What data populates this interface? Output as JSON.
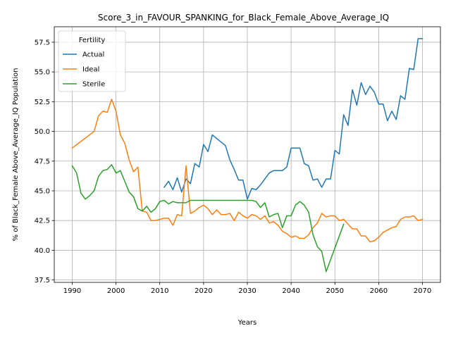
{
  "chart_data": {
    "type": "line",
    "title": "Score_3_in_FAVOUR_SPANKING_for_Black_Female_Above_Average_IQ",
    "xlabel": "Years",
    "ylabel": "% of Black_Female Above_Average_IQ Population",
    "xlim": [
      1985.9,
      2074.1
    ],
    "ylim": [
      37.3,
      58.8
    ],
    "xticks": [
      1990,
      2000,
      2010,
      2020,
      2030,
      2040,
      2050,
      2060,
      2070
    ],
    "yticks": [
      37.5,
      40.0,
      42.5,
      45.0,
      47.5,
      50.0,
      52.5,
      55.0,
      57.5
    ],
    "ytick_labels": [
      "37.5",
      "40.0",
      "42.5",
      "45.0",
      "47.5",
      "50.0",
      "52.5",
      "55.0",
      "57.5"
    ],
    "grid": true,
    "legend": {
      "title": "Fertility",
      "position": "top-left"
    },
    "series": [
      {
        "name": "Actual",
        "color": "#1f77b4",
        "x": [
          2011,
          2012,
          2013,
          2014,
          2015,
          2016,
          2017,
          2018,
          2019,
          2020,
          2021,
          2022,
          2023,
          2024,
          2025,
          2026,
          2027,
          2028,
          2029,
          2030,
          2031,
          2032,
          2033,
          2034,
          2035,
          2036,
          2037,
          2038,
          2039,
          2040,
          2041,
          2042,
          2043,
          2044,
          2045,
          2046,
          2047,
          2048,
          2049,
          2050,
          2051,
          2052,
          2053,
          2054,
          2055,
          2056,
          2057,
          2058,
          2059,
          2060,
          2061,
          2062,
          2063,
          2064,
          2065,
          2066,
          2067,
          2068,
          2069,
          2070
        ],
        "y": [
          45.3,
          45.8,
          45.1,
          46.1,
          44.9,
          46.0,
          45.6,
          47.3,
          47.0,
          48.9,
          48.3,
          49.7,
          49.4,
          49.1,
          48.8,
          47.6,
          46.8,
          45.9,
          45.9,
          44.3,
          45.2,
          45.1,
          45.5,
          46.0,
          46.5,
          46.7,
          46.7,
          46.7,
          47.0,
          48.6,
          48.6,
          48.6,
          47.3,
          47.1,
          45.9,
          46.0,
          45.3,
          46.0,
          46.0,
          48.4,
          48.1,
          51.4,
          50.5,
          53.5,
          52.2,
          54.1,
          53.1,
          53.8,
          53.3,
          52.3,
          52.3,
          50.9,
          51.7,
          51.0,
          53.0,
          52.7,
          55.3,
          55.2,
          57.8,
          57.8
        ]
      },
      {
        "name": "Ideal",
        "color": "#ff7f0e",
        "x": [
          1990,
          1995,
          1996,
          1997,
          1998,
          1999,
          2000,
          2001,
          2002,
          2003,
          2004,
          2005,
          2006,
          2007,
          2008,
          2009,
          2010,
          2011,
          2012,
          2013,
          2014,
          2015,
          2016,
          2017,
          2018,
          2019,
          2020,
          2021,
          2022,
          2023,
          2024,
          2025,
          2026,
          2027,
          2028,
          2029,
          2030,
          2031,
          2032,
          2033,
          2034,
          2035,
          2036,
          2037,
          2038,
          2039,
          2040,
          2041,
          2042,
          2043,
          2044,
          2045,
          2046,
          2047,
          2048,
          2049,
          2050,
          2051,
          2052,
          2053,
          2054,
          2055,
          2056,
          2057,
          2058,
          2059,
          2060,
          2061,
          2062,
          2063,
          2064,
          2065,
          2066,
          2067,
          2068,
          2069,
          2070
        ],
        "y": [
          48.6,
          50.0,
          51.3,
          51.7,
          51.6,
          52.7,
          51.7,
          49.7,
          49.0,
          47.6,
          46.6,
          47.0,
          43.3,
          43.2,
          42.5,
          42.5,
          42.6,
          42.7,
          42.7,
          42.1,
          43.0,
          42.9,
          47.1,
          43.1,
          43.3,
          43.6,
          43.8,
          43.5,
          43.0,
          43.4,
          43.0,
          43.0,
          43.1,
          42.5,
          43.2,
          42.9,
          42.7,
          43.0,
          42.9,
          42.6,
          42.9,
          42.3,
          42.4,
          42.1,
          41.6,
          41.4,
          41.1,
          41.2,
          41.0,
          41.0,
          41.3,
          41.9,
          42.3,
          43.1,
          42.8,
          42.9,
          42.9,
          42.5,
          42.6,
          42.2,
          41.8,
          41.8,
          41.2,
          41.2,
          40.7,
          40.8,
          41.1,
          41.5,
          41.7,
          41.9,
          42.0,
          42.6,
          42.8,
          42.8,
          42.9,
          42.5,
          42.6
        ]
      },
      {
        "name": "Sterile",
        "color": "#2ca02c",
        "x": [
          1990,
          1991,
          1992,
          1993,
          1994,
          1995,
          1996,
          1997,
          1998,
          1999,
          2000,
          2001,
          2002,
          2003,
          2004,
          2005,
          2006,
          2007,
          2008,
          2009,
          2010,
          2011,
          2012,
          2013,
          2014,
          2015,
          2016,
          2017,
          2018,
          2019,
          2020,
          2021,
          2022,
          2023,
          2024,
          2025,
          2026,
          2027,
          2028,
          2029,
          2030,
          2031,
          2032,
          2033,
          2034,
          2035,
          2036,
          2037,
          2038,
          2039,
          2040,
          2041,
          2042,
          2043,
          2044,
          2045,
          2046,
          2047,
          2048,
          2052
        ],
        "y": [
          47.1,
          46.5,
          44.8,
          44.3,
          44.6,
          45.0,
          46.2,
          46.7,
          46.8,
          47.2,
          46.5,
          46.7,
          45.8,
          44.9,
          44.5,
          43.5,
          43.3,
          43.7,
          43.2,
          43.5,
          44.1,
          44.2,
          43.9,
          44.1,
          44.0,
          44.0,
          44.0,
          44.2,
          44.2,
          44.2,
          44.2,
          44.2,
          44.2,
          44.2,
          44.2,
          44.2,
          44.2,
          44.2,
          44.2,
          44.2,
          44.2,
          44.2,
          44.1,
          43.6,
          44.0,
          42.8,
          43.0,
          43.1,
          41.9,
          42.9,
          42.9,
          43.8,
          44.1,
          43.8,
          43.2,
          41.3,
          40.3,
          39.9,
          38.2,
          42.2
        ]
      }
    ]
  }
}
